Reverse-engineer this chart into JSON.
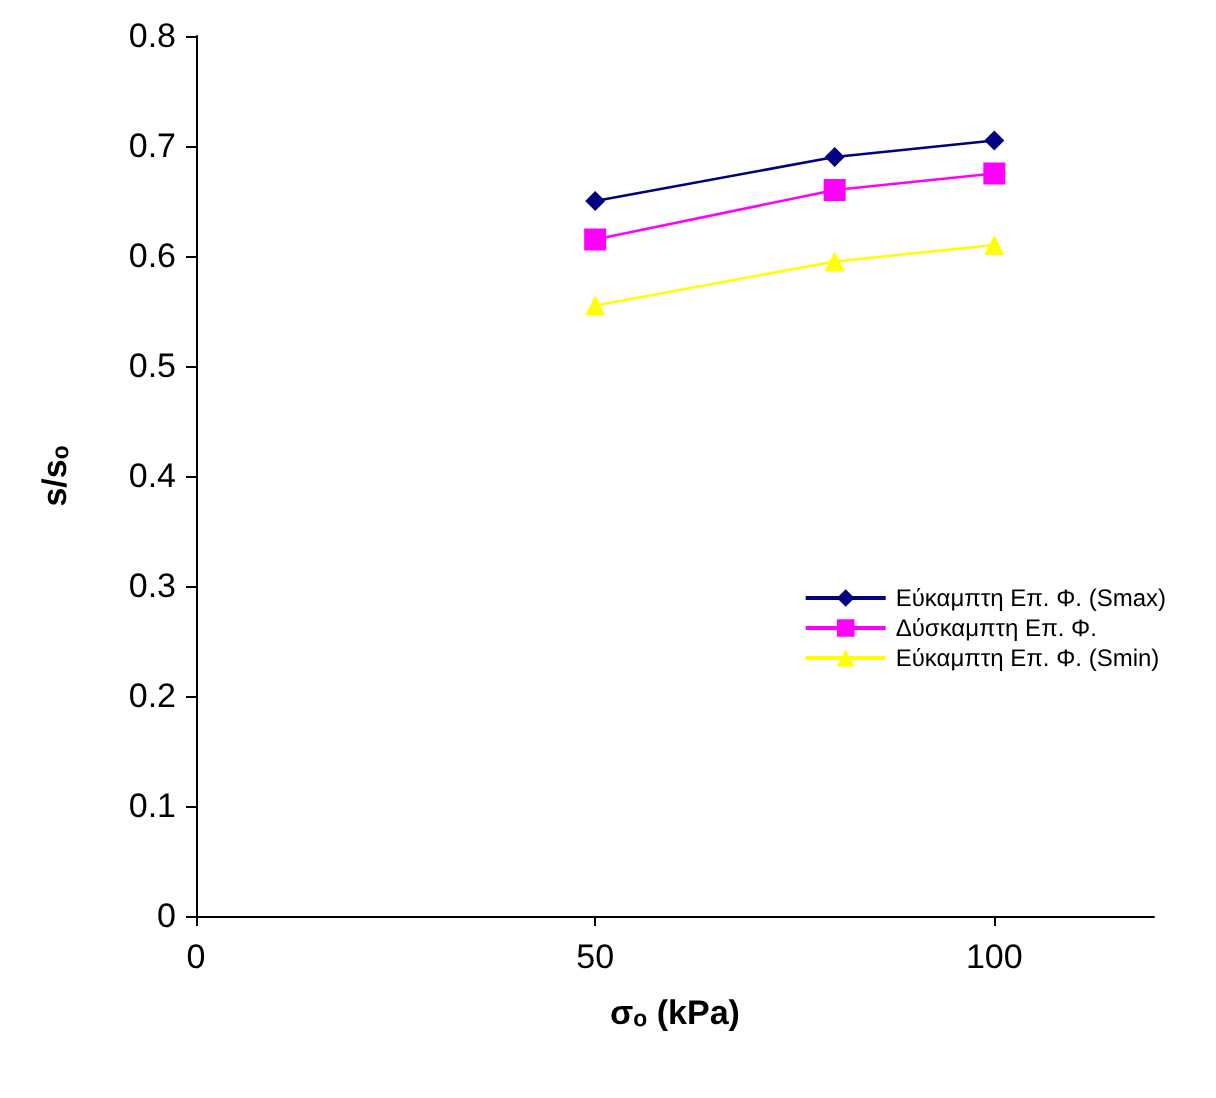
{
  "chart_data": {
    "type": "line",
    "xlabel": "σₒ (kPa)",
    "ylabel": "s/sₒ",
    "x": [
      50,
      80,
      100
    ],
    "xlim": [
      0,
      120
    ],
    "xticks": [
      0,
      50,
      100
    ],
    "ylim": [
      0,
      0.8
    ],
    "yticks": [
      0,
      0.1,
      0.2,
      0.3,
      0.4,
      0.5,
      0.6,
      0.7,
      0.8
    ],
    "grid": false,
    "legend": "right",
    "series": [
      {
        "name": "Εύκαμπτη Επ. Φ. (Smax)",
        "color": "#000080",
        "marker": "diamond",
        "values": [
          0.65,
          0.69,
          0.705
        ]
      },
      {
        "name": "Δύσκαμπτη Επ. Φ.",
        "color": "#ff00ff",
        "marker": "square",
        "values": [
          0.615,
          0.66,
          0.675
        ]
      },
      {
        "name": "Εύκαμπτη Επ. Φ. (Smin)",
        "color": "#ffff00",
        "marker": "triangle",
        "values": [
          0.555,
          0.595,
          0.61
        ]
      }
    ]
  }
}
